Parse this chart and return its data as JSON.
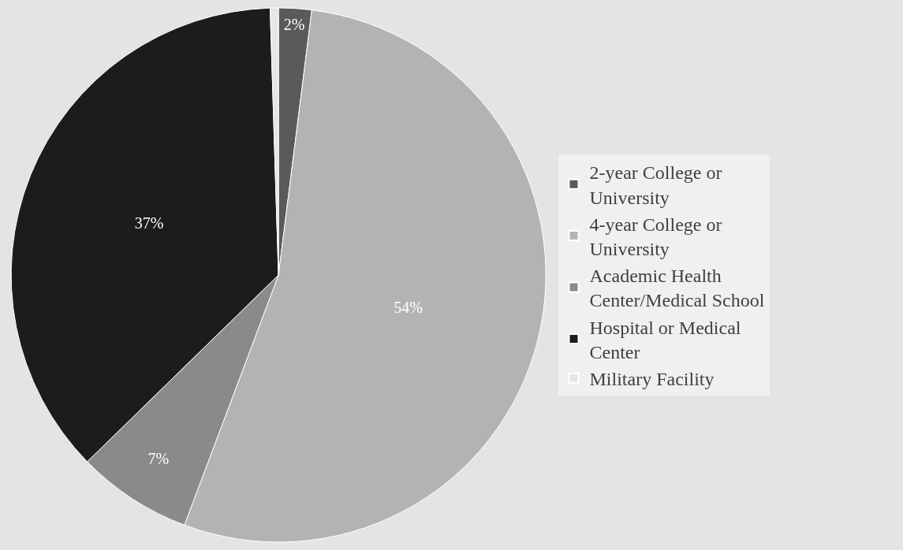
{
  "chart_data": {
    "type": "pie",
    "categories": [
      "2-year College or University",
      "4-year College or University",
      "Academic Health Center/Medical School",
      "Hospital or Medical Center",
      "Military Facility"
    ],
    "values": [
      2,
      54,
      7,
      37,
      0.5
    ],
    "value_labels": [
      "2%",
      "54%",
      "7%",
      "37%",
      null
    ],
    "colors": [
      "#5a5a5a",
      "#b3b3b3",
      "#8a8a8a",
      "#1c1c1c",
      "#e6e6e6"
    ],
    "legend": "right"
  }
}
